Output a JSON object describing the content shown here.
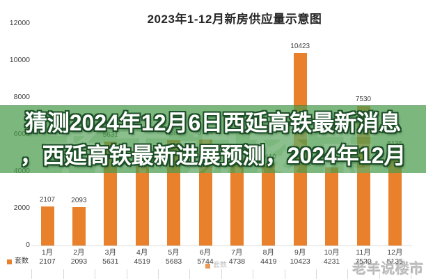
{
  "banner": {
    "line1": "猜测2024年12月6日西延高铁最新消息",
    "line2": "，西延高铁最新进展预测，2024年12月",
    "overlay_color": "#499B4C",
    "text_color": "#FFFFFF",
    "outline_color": "#1D4F27"
  },
  "watermark": {
    "text": "老羊说楼市",
    "color": "#8C8C8C"
  },
  "chart_data": {
    "type": "bar",
    "title": "2023年1-12月新房供应量示意图",
    "categories": [
      "1月",
      "2月",
      "3月",
      "4月",
      "5月",
      "6月",
      "7月",
      "8月",
      "9月",
      "10月",
      "11月",
      "12月"
    ],
    "series": [
      {
        "name": "套数",
        "values": [
          2107,
          2093,
          5631,
          4519,
          5683,
          5744,
          4738,
          4419,
          10423,
          4231,
          7530,
          5135
        ]
      }
    ],
    "yticks": [
      0,
      2000,
      4000,
      6000,
      8000,
      10000,
      12000
    ],
    "ylim": [
      0,
      12000
    ],
    "xlabel": "",
    "ylabel": "",
    "bar_color": "#E8802C",
    "label_color": "#404040",
    "legend_position": "bottom",
    "data_table": true,
    "grid": false
  }
}
